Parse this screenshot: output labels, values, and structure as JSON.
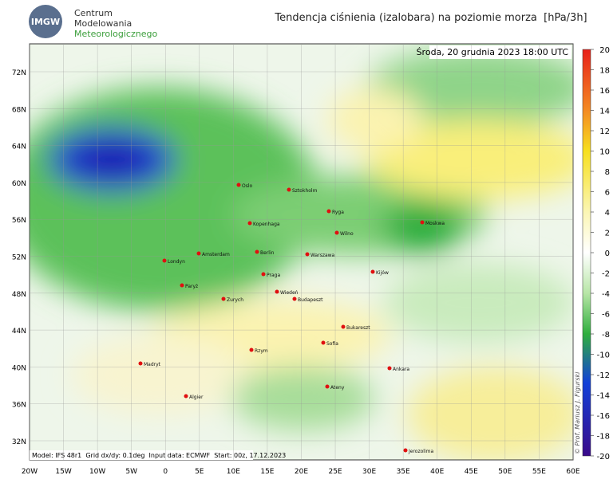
{
  "header": {
    "logo": "IMGW",
    "org": [
      "Centrum",
      "Modelowania",
      "Meteorologicznego"
    ],
    "title": "Tendencja ciśnienia (izalobara) na poziomie morza  [hPa/3h]"
  },
  "map": {
    "date": "Środa, 20 grudnia 2023 18:00 UTC",
    "lat_labels": [
      "72N",
      "68N",
      "64N",
      "60N",
      "56N",
      "52N",
      "48N",
      "44N",
      "40N",
      "36N",
      "32N"
    ],
    "lon_labels": [
      "20W",
      "15W",
      "10W",
      "5W",
      "0",
      "5E",
      "10E",
      "15E",
      "20E",
      "25E",
      "30E",
      "35E",
      "40E",
      "45E",
      "50E",
      "55E",
      "60E"
    ],
    "cities": [
      "Oslo",
      "Sztokholm",
      "Ryga",
      "Moskwa",
      "Kopenhaga",
      "Wilno",
      "Londyn",
      "Amsterdam",
      "Berlin",
      "Warszawa",
      "Kijów",
      "Praga",
      "Paryż",
      "Wiedeń",
      "Budapeszt",
      "Zurych",
      "Bukareszt",
      "Sofia",
      "Rzym",
      "Madryt",
      "Ankara",
      "Ateny",
      "Algier",
      "Jerozolima"
    ],
    "footer": "Model: IFS 48r1  Grid dx/dy: 0.1deg  Input data: ECMWF  Start: 00z, 17.12.2023",
    "credit": "© Prof. Mariusz J. Figurski"
  },
  "colorbar": {
    "ticks": [
      20,
      18,
      16,
      14,
      12,
      10,
      8,
      6,
      4,
      2,
      0,
      -2,
      -4,
      -6,
      -8,
      -10,
      -12,
      -14,
      -16,
      -18,
      -20
    ],
    "lim": [
      -20,
      20
    ]
  }
}
